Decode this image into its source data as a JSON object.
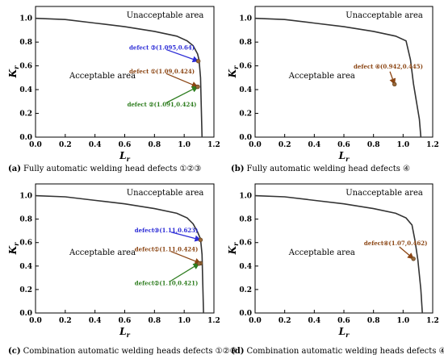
{
  "chart_data": [
    {
      "type": "line",
      "caption_letter": "(a)",
      "caption": "Fully automatic welding head defects ①②③",
      "xlabel": "L",
      "xlabel_sub": "r",
      "ylabel": "K",
      "ylabel_sub": "r",
      "xlim": [
        0.0,
        1.2
      ],
      "ylim": [
        0.0,
        1.1
      ],
      "xticks": [
        "0.0",
        "0.2",
        "0.4",
        "0.6",
        "0.8",
        "1.0",
        "1.2"
      ],
      "yticks": [
        "0.0",
        "0.2",
        "0.4",
        "0.6",
        "0.8",
        "1.0"
      ],
      "region_labels": {
        "unacceptable": "Unacceptable area",
        "acceptable": "Acceptable area"
      },
      "curve": {
        "x": [
          0.0,
          0.2,
          0.4,
          0.6,
          0.8,
          0.95,
          1.02,
          1.06,
          1.09,
          1.1,
          1.11,
          1.115,
          1.12
        ],
        "y": [
          1.0,
          0.99,
          0.96,
          0.93,
          0.89,
          0.85,
          0.81,
          0.77,
          0.7,
          0.65,
          0.5,
          0.25,
          0.0
        ]
      },
      "defects": [
        {
          "label": "defect ③(1.095,0.64)",
          "x": 1.095,
          "y": 0.64,
          "color": "#2b2bd6",
          "label_at": [
            0.85,
            0.75
          ]
        },
        {
          "label": "defect ①(1.09,0.424)",
          "x": 1.09,
          "y": 0.424,
          "color": "#8b4513",
          "label_at": [
            0.85,
            0.55
          ]
        },
        {
          "label": "defect ②(1.091,0.424)",
          "x": 1.091,
          "y": 0.424,
          "color": "#2e7d1f",
          "label_at": [
            0.85,
            0.27
          ]
        }
      ]
    },
    {
      "type": "line",
      "caption_letter": "(b)",
      "caption": "Fully automatic welding head defects ④",
      "xlabel": "L",
      "xlabel_sub": "r",
      "ylabel": "K",
      "ylabel_sub": "r",
      "xlim": [
        0.0,
        1.2
      ],
      "ylim": [
        0.0,
        1.1
      ],
      "xticks": [
        "0.0",
        "0.2",
        "0.4",
        "0.6",
        "0.8",
        "1.0",
        "1.2"
      ],
      "yticks": [
        "0.0",
        "0.2",
        "0.4",
        "0.6",
        "0.8",
        "1.0"
      ],
      "region_labels": {
        "unacceptable": "Unacceptable area",
        "acceptable": "Acceptable area"
      },
      "curve": {
        "x": [
          0.0,
          0.2,
          0.4,
          0.6,
          0.8,
          0.95,
          1.02,
          1.05,
          1.07,
          1.09,
          1.11,
          1.12
        ],
        "y": [
          1.0,
          0.99,
          0.96,
          0.93,
          0.89,
          0.85,
          0.81,
          0.65,
          0.45,
          0.3,
          0.15,
          0.0
        ]
      },
      "defects": [
        {
          "label": "defect ④(0.942,0.445)",
          "x": 0.942,
          "y": 0.445,
          "color": "#8b4513",
          "label_at": [
            0.9,
            0.59
          ]
        }
      ]
    },
    {
      "type": "line",
      "caption_letter": "(c)",
      "caption": "Combination automatic welding heads defects ①②③",
      "xlabel": "L",
      "xlabel_sub": "r",
      "ylabel": "K",
      "ylabel_sub": "r",
      "xlim": [
        0.0,
        1.2
      ],
      "ylim": [
        0.0,
        1.1
      ],
      "xticks": [
        "0.0",
        "0.2",
        "0.4",
        "0.6",
        "0.8",
        "1.0",
        "1.2"
      ],
      "yticks": [
        "0.0",
        "0.2",
        "0.4",
        "0.6",
        "0.8",
        "1.0"
      ],
      "region_labels": {
        "unacceptable": "Unacceptable area",
        "acceptable": "Acceptable area"
      },
      "curve": {
        "x": [
          0.0,
          0.2,
          0.4,
          0.6,
          0.8,
          0.95,
          1.02,
          1.06,
          1.09,
          1.11,
          1.12,
          1.125,
          1.13
        ],
        "y": [
          1.0,
          0.99,
          0.96,
          0.93,
          0.89,
          0.85,
          0.81,
          0.76,
          0.69,
          0.63,
          0.5,
          0.25,
          0.0
        ]
      },
      "defects": [
        {
          "label": "defect③(1.11,0.623)",
          "x": 1.11,
          "y": 0.623,
          "color": "#2b2bd6",
          "label_at": [
            0.88,
            0.7
          ]
        },
        {
          "label": "defect①(1.11,0.424)",
          "x": 1.11,
          "y": 0.424,
          "color": "#8b4513",
          "label_at": [
            0.88,
            0.54
          ]
        },
        {
          "label": "defect②(1.10,0.421)",
          "x": 1.1,
          "y": 0.421,
          "color": "#2e7d1f",
          "label_at": [
            0.88,
            0.25
          ]
        }
      ]
    },
    {
      "type": "line",
      "caption_letter": "(d)",
      "caption": "Combination automatic welding heads defects ④",
      "xlabel": "L",
      "xlabel_sub": "r",
      "ylabel": "K",
      "ylabel_sub": "r",
      "xlim": [
        0.0,
        1.2
      ],
      "ylim": [
        0.0,
        1.1
      ],
      "xticks": [
        "0.0",
        "0.2",
        "0.4",
        "0.6",
        "0.8",
        "1.0",
        "1.2"
      ],
      "yticks": [
        "0.0",
        "0.2",
        "0.4",
        "0.6",
        "0.8",
        "1.0"
      ],
      "region_labels": {
        "unacceptable": "Unacceptable area",
        "acceptable": "Acceptable area"
      },
      "curve": {
        "x": [
          0.0,
          0.2,
          0.4,
          0.6,
          0.8,
          0.95,
          1.02,
          1.06,
          1.08,
          1.1,
          1.12,
          1.13
        ],
        "y": [
          1.0,
          0.99,
          0.96,
          0.93,
          0.89,
          0.85,
          0.81,
          0.75,
          0.62,
          0.45,
          0.2,
          0.0
        ]
      },
      "defects": [
        {
          "label": "defect④(1.07,0.462)",
          "x": 1.07,
          "y": 0.462,
          "color": "#8b4513",
          "label_at": [
            0.95,
            0.59
          ]
        }
      ]
    }
  ]
}
